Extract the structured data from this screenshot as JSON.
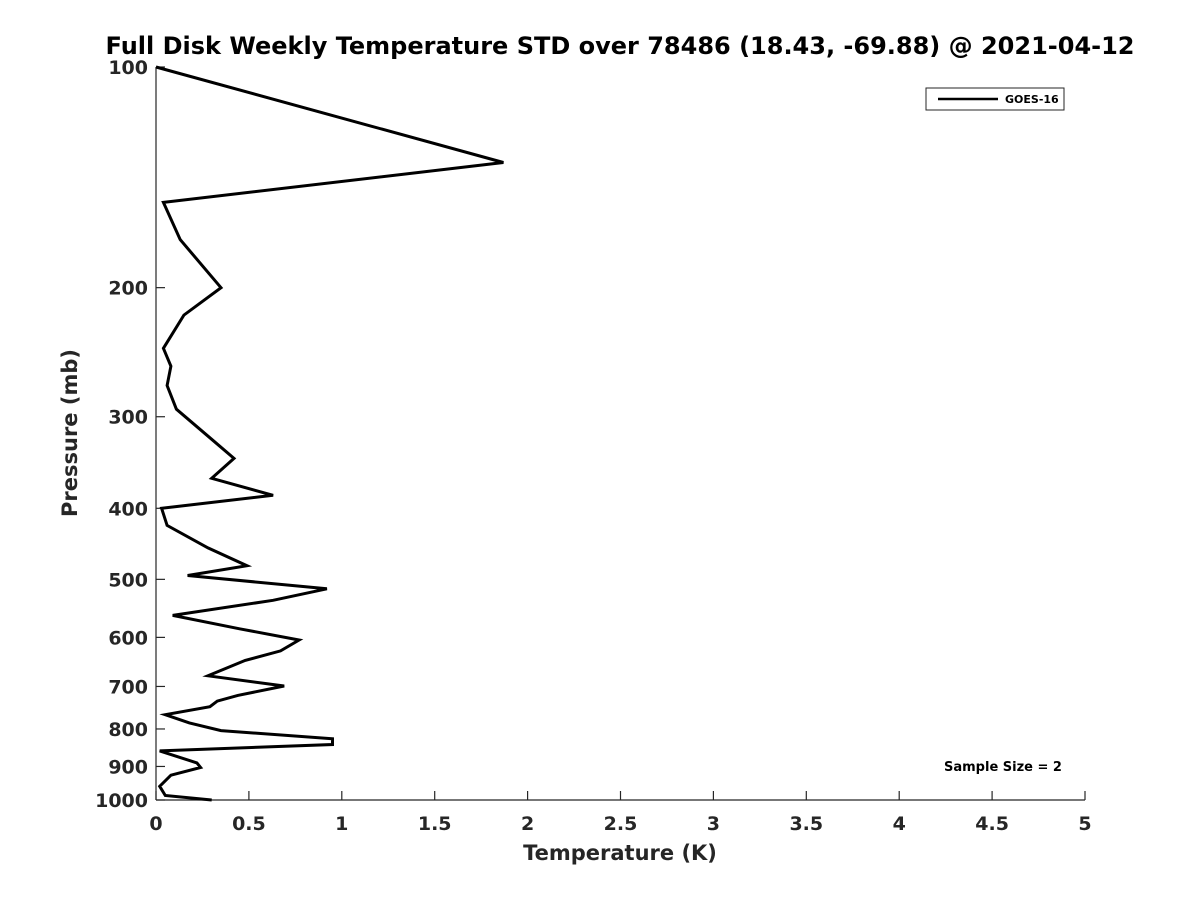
{
  "chart_data": {
    "type": "line",
    "title": "Full Disk Weekly Temperature STD over 78486 (18.43, -69.88) @ 2021-04-12",
    "xlabel": "Temperature (K)",
    "ylabel": "Pressure (mb)",
    "xlim": [
      0,
      5
    ],
    "ylim": [
      100,
      1000
    ],
    "y_scale": "log",
    "y_reversed": true,
    "x_ticks": [
      "0",
      "0.5",
      "1",
      "1.5",
      "2",
      "2.5",
      "3",
      "3.5",
      "4",
      "4.5",
      "5"
    ],
    "y_ticks": [
      "100",
      "200",
      "300",
      "400",
      "500",
      "600",
      "700",
      "800",
      "900",
      "1000"
    ],
    "grid": false,
    "legend": {
      "position": "top-right",
      "entries": [
        "GOES-16"
      ]
    },
    "annotation": "Sample Size = 2",
    "series": [
      {
        "name": "GOES-16",
        "color": "#000000",
        "points": [
          [
            0.0,
            100
          ],
          [
            1.87,
            135
          ],
          [
            0.04,
            153
          ],
          [
            0.13,
            172
          ],
          [
            0.35,
            200
          ],
          [
            0.15,
            218
          ],
          [
            0.04,
            242
          ],
          [
            0.08,
            256
          ],
          [
            0.06,
            272
          ],
          [
            0.11,
            293
          ],
          [
            0.3,
            322
          ],
          [
            0.42,
            342
          ],
          [
            0.3,
            364
          ],
          [
            0.63,
            384
          ],
          [
            0.03,
            400
          ],
          [
            0.06,
            422
          ],
          [
            0.28,
            453
          ],
          [
            0.49,
            479
          ],
          [
            0.17,
            494
          ],
          [
            0.92,
            515
          ],
          [
            0.63,
            534
          ],
          [
            0.09,
            560
          ],
          [
            0.45,
            584
          ],
          [
            0.77,
            605
          ],
          [
            0.67,
            626
          ],
          [
            0.48,
            645
          ],
          [
            0.28,
            677
          ],
          [
            0.69,
            699
          ],
          [
            0.44,
            720
          ],
          [
            0.33,
            733
          ],
          [
            0.29,
            746
          ],
          [
            0.05,
            765
          ],
          [
            0.18,
            785
          ],
          [
            0.35,
            804
          ],
          [
            0.95,
            825
          ],
          [
            0.95,
            840
          ],
          [
            0.02,
            857
          ],
          [
            0.22,
            890
          ],
          [
            0.24,
            903
          ],
          [
            0.08,
            925
          ],
          [
            0.02,
            958
          ],
          [
            0.05,
            986
          ],
          [
            0.3,
            1000
          ]
        ]
      }
    ]
  }
}
